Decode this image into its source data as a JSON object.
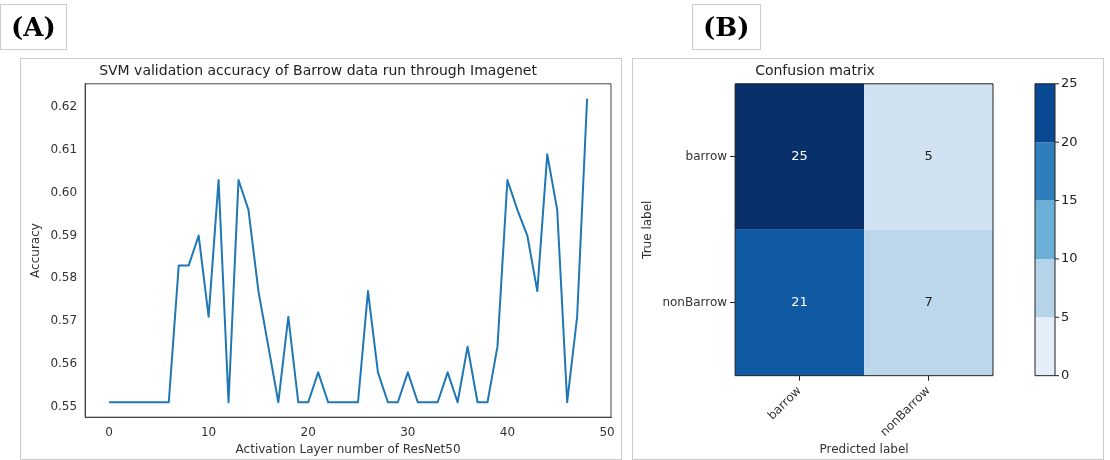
{
  "chart_data": [
    {
      "type": "line",
      "title": "SVM validation accuracy of Barrow data run through Imagenet",
      "xlabel": "Activation Layer number of ResNet50",
      "ylabel": "Accuracy",
      "annotations": [
        "(A)"
      ],
      "x": [
        0,
        1,
        2,
        3,
        4,
        5,
        6,
        7,
        8,
        9,
        10,
        11,
        12,
        13,
        14,
        15,
        16,
        17,
        18,
        19,
        20,
        21,
        22,
        23,
        24,
        25,
        26,
        27,
        28,
        29,
        30,
        31,
        32,
        33,
        34,
        35,
        36,
        37,
        38,
        39,
        40,
        41,
        42,
        43,
        44,
        45,
        46,
        47,
        48
      ],
      "series": [
        {
          "color": "#1f77b4",
          "values": [
            0.551,
            0.551,
            0.551,
            0.551,
            0.551,
            0.551,
            0.551,
            0.583,
            0.583,
            0.59,
            0.571,
            0.603,
            0.551,
            0.603,
            0.596,
            0.577,
            0.564,
            0.551,
            0.571,
            0.551,
            0.551,
            0.558,
            0.551,
            0.551,
            0.551,
            0.551,
            0.577,
            0.558,
            0.551,
            0.551,
            0.558,
            0.551,
            0.551,
            0.551,
            0.558,
            0.551,
            0.564,
            0.551,
            0.551,
            0.564,
            0.603,
            0.596,
            0.59,
            0.577,
            0.609,
            0.596,
            0.551,
            0.571,
            0.622
          ]
        }
      ],
      "xlim": [
        -2.4,
        50.4
      ],
      "xticks": [
        0,
        10,
        20,
        30,
        40,
        50
      ],
      "ylim": [
        0.5475,
        0.6255
      ],
      "yticks": [
        0.55,
        0.56,
        0.57,
        0.58,
        0.59,
        {
          "value": 0.6,
          "label": "0.60"
        },
        0.61,
        0.62
      ],
      "grid": false,
      "legend": false,
      "marker": "none",
      "line_style": "solid"
    },
    {
      "type": "heatmap",
      "title": "Confusion matrix",
      "xlabel": "Predicted label",
      "ylabel": "True label",
      "annotations": [
        "(B)"
      ],
      "categories": [
        "barrow",
        "nonBarrow"
      ],
      "y_categories": [
        "barrow",
        "nonBarrow"
      ],
      "cells": [
        [
          25,
          5
        ],
        [
          21,
          7
        ]
      ],
      "data_labels": true,
      "clim": [
        0,
        25
      ],
      "cticks": [
        0,
        5,
        10,
        15,
        20,
        25
      ]
    }
  ]
}
